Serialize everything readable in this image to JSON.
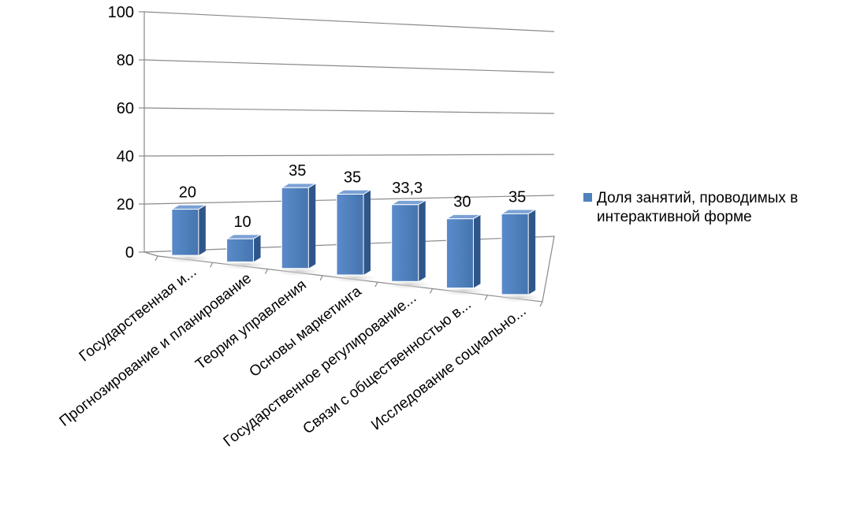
{
  "chart_data": {
    "type": "bar",
    "title": "",
    "xlabel": "",
    "ylabel": "",
    "ylim": [
      0,
      100
    ],
    "yticks": [
      0,
      20,
      40,
      60,
      80,
      100
    ],
    "grid": true,
    "legend_position": "right",
    "categories": [
      "Государственная и...",
      "Прогнозирование и планирование",
      "Теория управления",
      "Основы маркетинга",
      "Государственное регулирование...",
      "Связи с общественностью  в...",
      "Исследование социально..."
    ],
    "series": [
      {
        "name": "Доля занятий, проводимых в интерактивной форме",
        "values": [
          20,
          10,
          35,
          35,
          33.3,
          30,
          35
        ],
        "labels": [
          "20",
          "10",
          "35",
          "35",
          "33,3",
          "30",
          "35"
        ],
        "color": "#4F81BD"
      }
    ]
  }
}
